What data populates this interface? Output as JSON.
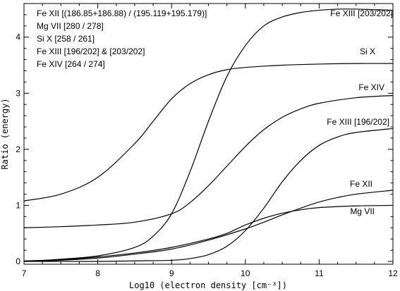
{
  "chart_data": {
    "type": "line",
    "title": "",
    "xlabel": "Log10 (electron density [cm⁻³])",
    "ylabel": "Ratio (energy)",
    "xlim": [
      7,
      12
    ],
    "ylim": [
      -0.05,
      4.6
    ],
    "x_ticks": [
      7,
      8,
      9,
      10,
      11,
      12
    ],
    "y_ticks": [
      0,
      1,
      2,
      3,
      4
    ],
    "grid": false,
    "legend": {
      "placement": "top-left",
      "lines": [
        "Fe XII [(186.85+186.88) / (195.119+195.179)]",
        "Mg VII [280 / 278]",
        "Si X [258 / 261]",
        "Fe XIII [196/202] & [203/202]",
        "Fe XIV [264 / 274]"
      ]
    },
    "series": [
      {
        "name": "Fe XIII [203/202]",
        "x": [
          7.0,
          7.5,
          8.0,
          8.5,
          8.75,
          9.0,
          9.25,
          9.5,
          9.75,
          10.0,
          10.25,
          10.5,
          10.75,
          11.0,
          11.25,
          11.5,
          12.0
        ],
        "y": [
          0.0,
          0.04,
          0.1,
          0.25,
          0.45,
          0.85,
          1.6,
          2.5,
          3.3,
          3.85,
          4.2,
          4.36,
          4.44,
          4.48,
          4.5,
          4.5,
          4.48
        ]
      },
      {
        "name": "Si X",
        "x": [
          7.0,
          7.5,
          8.0,
          8.5,
          8.75,
          9.0,
          9.25,
          9.5,
          9.75,
          10.0,
          10.5,
          11.0,
          11.5,
          12.0
        ],
        "y": [
          1.08,
          1.2,
          1.5,
          2.1,
          2.5,
          2.9,
          3.17,
          3.33,
          3.42,
          3.46,
          3.5,
          3.52,
          3.53,
          3.53
        ]
      },
      {
        "name": "Fe XIV",
        "x": [
          7.0,
          7.5,
          8.0,
          8.5,
          9.0,
          9.25,
          9.5,
          9.75,
          10.0,
          10.25,
          10.5,
          10.75,
          11.0,
          11.5,
          12.0
        ],
        "y": [
          0.6,
          0.62,
          0.65,
          0.7,
          0.85,
          1.05,
          1.35,
          1.7,
          2.05,
          2.35,
          2.57,
          2.72,
          2.82,
          2.92,
          2.96
        ]
      },
      {
        "name": "Fe XIII [196/202]",
        "x": [
          7.0,
          8.0,
          8.5,
          9.0,
          9.25,
          9.5,
          9.75,
          10.0,
          10.25,
          10.5,
          10.75,
          11.0,
          11.25,
          11.5,
          12.0
        ],
        "y": [
          0.0,
          0.0,
          0.01,
          0.02,
          0.05,
          0.12,
          0.27,
          0.55,
          0.95,
          1.42,
          1.8,
          2.07,
          2.22,
          2.3,
          2.37
        ]
      },
      {
        "name": "Fe XII",
        "x": [
          7.0,
          7.5,
          8.0,
          8.5,
          9.0,
          9.5,
          10.0,
          10.25,
          10.5,
          10.75,
          11.0,
          11.25,
          11.5,
          12.0
        ],
        "y": [
          0.0,
          0.02,
          0.06,
          0.13,
          0.22,
          0.38,
          0.58,
          0.7,
          0.83,
          0.95,
          1.06,
          1.14,
          1.2,
          1.27
        ]
      },
      {
        "name": "Mg VII",
        "x": [
          7.0,
          7.5,
          8.0,
          8.5,
          9.0,
          9.5,
          9.75,
          10.0,
          10.25,
          10.5,
          10.75,
          11.0,
          11.5,
          12.0
        ],
        "y": [
          0.01,
          0.03,
          0.08,
          0.15,
          0.25,
          0.4,
          0.5,
          0.65,
          0.77,
          0.86,
          0.92,
          0.96,
          0.99,
          1.0
        ]
      }
    ],
    "series_labels": [
      {
        "text": "Fe XIII [203/202]",
        "series": "Fe XIII [203/202]"
      },
      {
        "text": "Si X",
        "series": "Si X"
      },
      {
        "text": "Fe XIV",
        "series": "Fe XIV"
      },
      {
        "text": "Fe XIII [196/202]",
        "series": "Fe XIII [196/202]"
      },
      {
        "text": "Fe XII",
        "series": "Fe XII"
      },
      {
        "text": "Mg VII",
        "series": "Mg VII"
      }
    ]
  }
}
